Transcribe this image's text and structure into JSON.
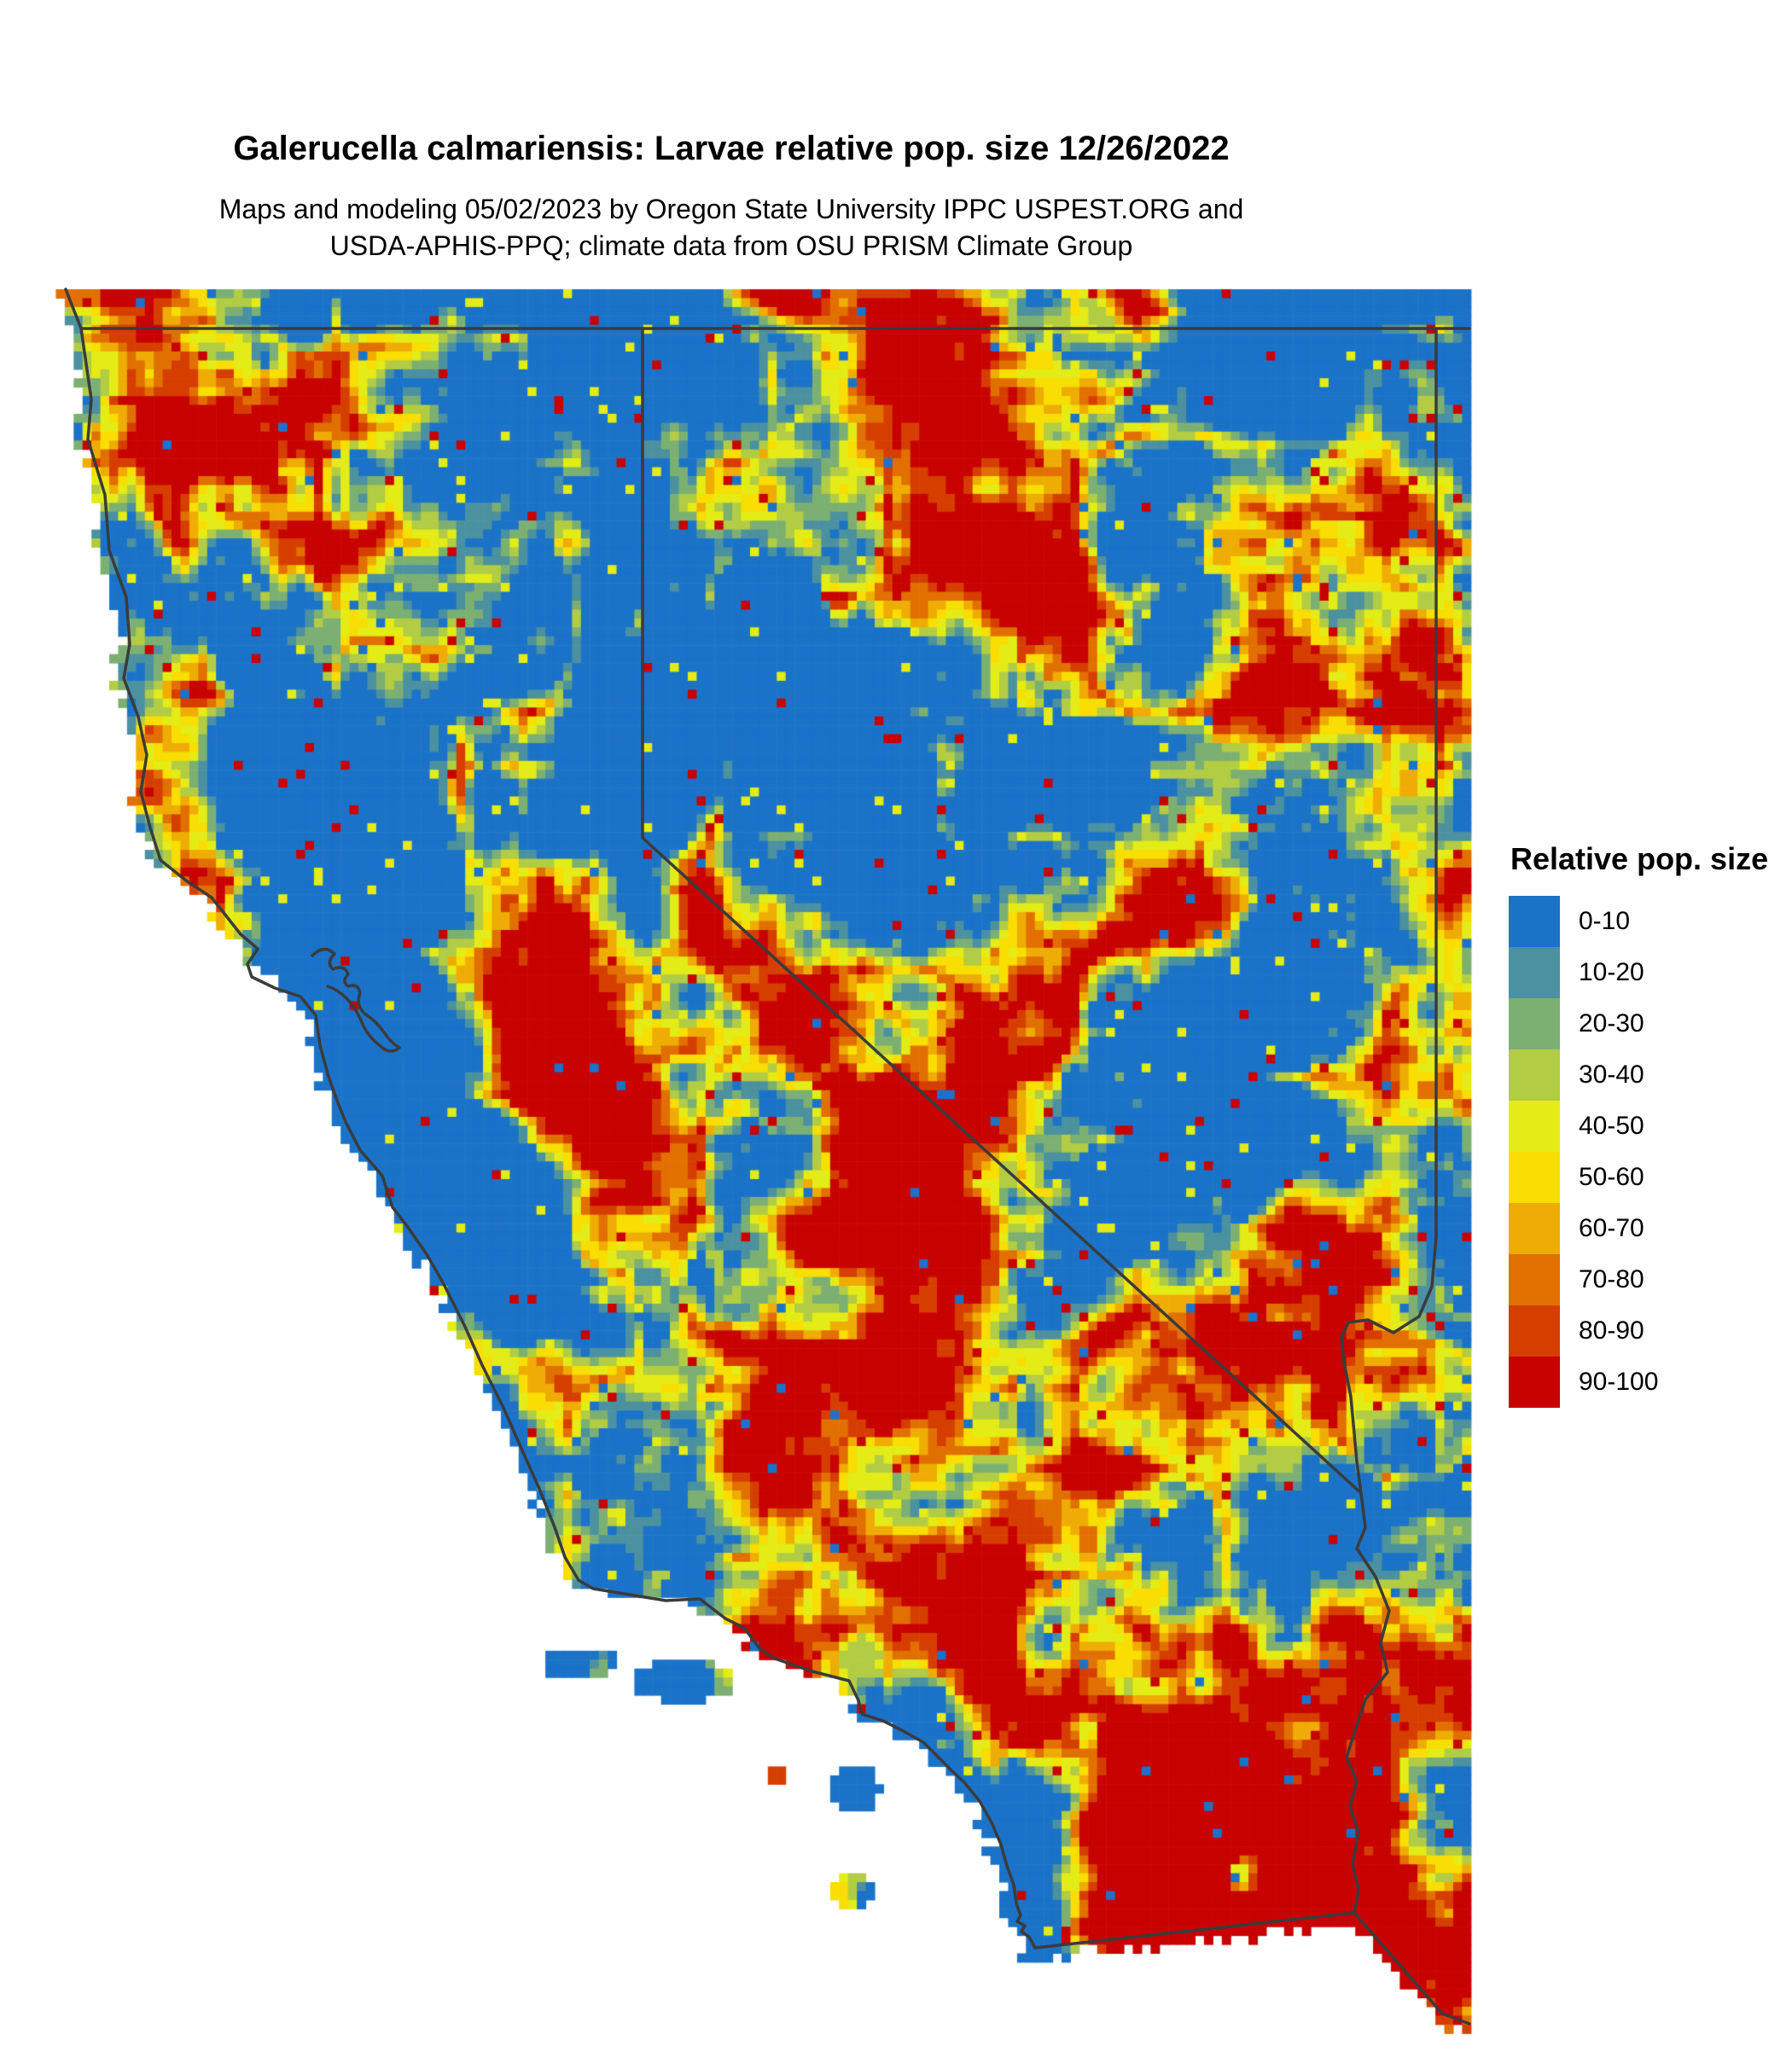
{
  "header": {
    "title": "Galerucella calmariensis: Larvae relative pop. size 12/26/2022",
    "subtitle_line1": "Maps and modeling 05/02/2023 by Oregon State University IPPC USPEST.ORG and",
    "subtitle_line2": "USDA-APHIS-PPQ; climate data from OSU PRISM Climate Group"
  },
  "legend": {
    "title": "Relative pop. size",
    "entries": [
      {
        "label": "0-10",
        "color": "#1B73C8"
      },
      {
        "label": "10-20",
        "color": "#4B91A0"
      },
      {
        "label": "20-30",
        "color": "#7CB072"
      },
      {
        "label": "30-40",
        "color": "#B2CC44"
      },
      {
        "label": "40-50",
        "color": "#E3EC16"
      },
      {
        "label": "50-60",
        "color": "#F8DE02"
      },
      {
        "label": "60-70",
        "color": "#EFAC04"
      },
      {
        "label": "70-80",
        "color": "#E17000"
      },
      {
        "label": "80-90",
        "color": "#D63E00"
      },
      {
        "label": "90-100",
        "color": "#C80200"
      }
    ]
  },
  "map": {
    "type": "raster-grid-map",
    "region_shown": "California and Nevada",
    "border_color": "#3B3B3B",
    "ocean_color": "#FFFFFF"
  }
}
